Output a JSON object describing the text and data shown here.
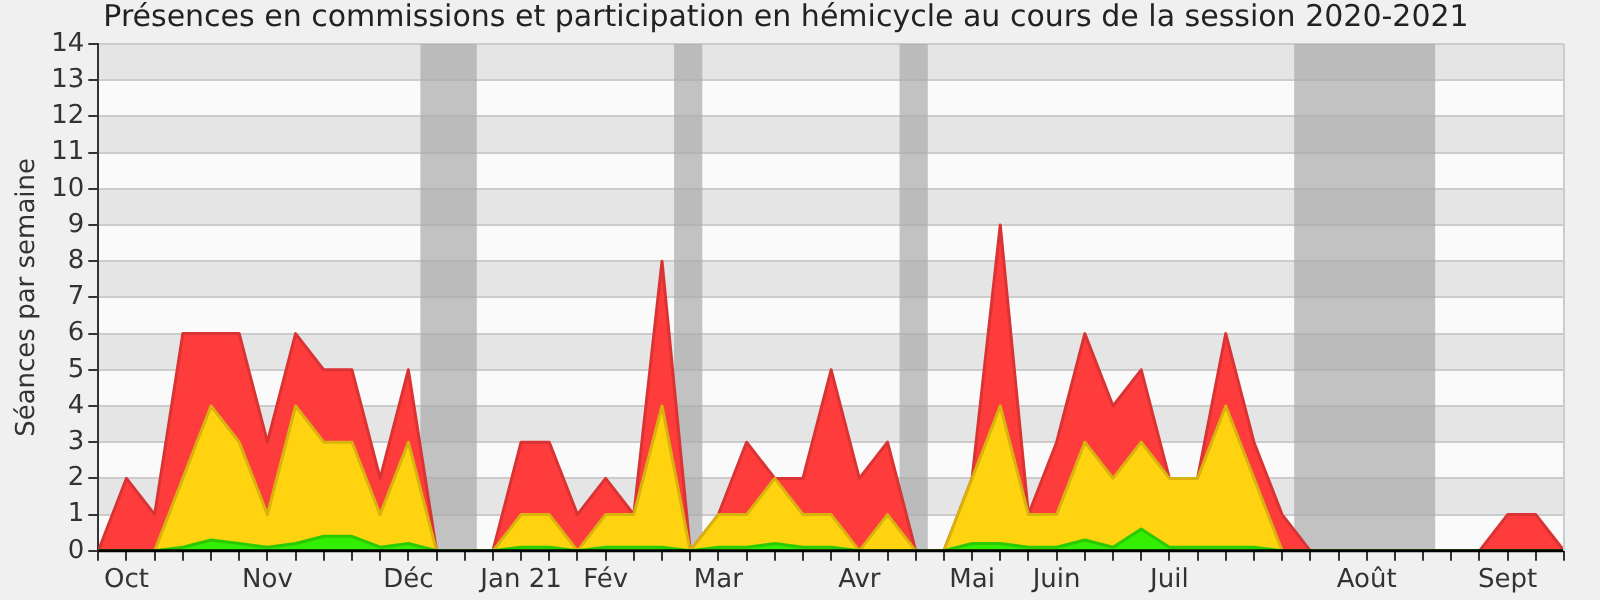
{
  "chart_data": {
    "type": "area",
    "title": "Présences en commissions et participation en hémicycle au cours de la session 2020-2021",
    "ylabel": "Séances par semaine",
    "stacked": true,
    "marker": "none",
    "grid": "y",
    "legend": false,
    "x": [
      "2020-09-28",
      "2020-10-05",
      "2020-10-12",
      "2020-10-19",
      "2020-10-26",
      "2020-11-02",
      "2020-11-09",
      "2020-11-16",
      "2020-11-23",
      "2020-11-30",
      "2020-12-07",
      "2020-12-14",
      "2020-12-21",
      "2020-12-28",
      "2021-01-04",
      "2021-01-11",
      "2021-01-18",
      "2021-01-25",
      "2021-02-01",
      "2021-02-08",
      "2021-02-15",
      "2021-02-22",
      "2021-03-01",
      "2021-03-08",
      "2021-03-15",
      "2021-03-22",
      "2021-03-29",
      "2021-04-05",
      "2021-04-12",
      "2021-04-19",
      "2021-04-26",
      "2021-05-03",
      "2021-05-10",
      "2021-05-17",
      "2021-05-24",
      "2021-05-31",
      "2021-06-07",
      "2021-06-14",
      "2021-06-21",
      "2021-06-28",
      "2021-07-05",
      "2021-07-12",
      "2021-07-19",
      "2021-07-26",
      "2021-08-02",
      "2021-08-09",
      "2021-08-16",
      "2021-08-23",
      "2021-08-30",
      "2021-09-06",
      "2021-09-13",
      "2021-09-20",
      "2021-09-27"
    ],
    "series": [
      {
        "color": "#33ee00",
        "values": [
          0,
          0,
          0,
          0.1,
          0.3,
          0.2,
          0.1,
          0.2,
          0.4,
          0.4,
          0.1,
          0.2,
          0,
          0,
          0,
          0.1,
          0.1,
          0,
          0.1,
          0.1,
          0.1,
          0,
          0.1,
          0.1,
          0.2,
          0.1,
          0.1,
          0,
          0,
          0,
          0,
          0.2,
          0.2,
          0.1,
          0.1,
          0.3,
          0.1,
          0.6,
          0.1,
          0.1,
          0.1,
          0.1,
          0,
          0,
          0,
          0,
          0,
          0,
          0,
          0,
          0,
          0,
          0
        ]
      },
      {
        "color": "#ffd30f",
        "values": [
          0,
          0,
          0,
          1.9,
          3.7,
          2.8,
          0.9,
          3.8,
          2.6,
          2.6,
          0.9,
          2.8,
          0,
          0,
          0,
          0.9,
          0.9,
          0,
          0.9,
          0.9,
          3.9,
          0,
          0.9,
          0.9,
          1.8,
          0.9,
          0.9,
          0,
          1,
          0,
          0,
          1.8,
          3.8,
          0.9,
          0.9,
          2.7,
          1.9,
          2.4,
          1.9,
          1.9,
          3.9,
          1.9,
          0,
          0,
          0,
          0,
          0,
          0,
          0,
          0,
          0,
          0,
          0
        ]
      },
      {
        "color": "#ff3c3c",
        "values": [
          0,
          2,
          1,
          4,
          2,
          3,
          2,
          2,
          2,
          2,
          1,
          2,
          0,
          0,
          0,
          2,
          2,
          1,
          1,
          0,
          4,
          0,
          0,
          2,
          0,
          1,
          4,
          2,
          2,
          0,
          0,
          0,
          5,
          0,
          2,
          3,
          2,
          2,
          0,
          0,
          2,
          1,
          1,
          0,
          0,
          0,
          0,
          0,
          0,
          0,
          1,
          1,
          0
        ]
      }
    ],
    "bands": [
      {
        "axis": "x",
        "from": "2020-12-17",
        "to": "2020-12-31",
        "color": "#aaaaaa"
      },
      {
        "axis": "x",
        "from": "2021-02-18",
        "to": "2021-02-25",
        "color": "#aaaaaa"
      },
      {
        "axis": "x",
        "from": "2021-04-15",
        "to": "2021-04-22",
        "color": "#aaaaaa"
      },
      {
        "axis": "x",
        "from": "2021-07-22",
        "to": "2021-08-26",
        "color": "#aaaaaa"
      }
    ],
    "xlim": [
      "2020-09-28",
      "2021-09-27"
    ],
    "xticks": [
      {
        "value": "2020-09-28",
        "label": null
      },
      {
        "value": "2020-10-05",
        "label": "Oct"
      },
      {
        "value": "2020-10-12",
        "label": null
      },
      {
        "value": "2020-10-19",
        "label": null
      },
      {
        "value": "2020-10-26",
        "label": null
      },
      {
        "value": "2020-11-02",
        "label": null
      },
      {
        "value": "2020-11-09",
        "label": "Nov"
      },
      {
        "value": "2020-11-16",
        "label": null
      },
      {
        "value": "2020-11-23",
        "label": null
      },
      {
        "value": "2020-11-30",
        "label": null
      },
      {
        "value": "2020-12-07",
        "label": null
      },
      {
        "value": "2020-12-14",
        "label": "Déc"
      },
      {
        "value": "2020-12-21",
        "label": null
      },
      {
        "value": "2020-12-28",
        "label": null
      },
      {
        "value": "2021-01-04",
        "label": null
      },
      {
        "value": "2021-01-11",
        "label": "Jan 21"
      },
      {
        "value": "2021-01-18",
        "label": null
      },
      {
        "value": "2021-01-25",
        "label": null
      },
      {
        "value": "2021-02-01",
        "label": "Fév"
      },
      {
        "value": "2021-02-08",
        "label": null
      },
      {
        "value": "2021-02-15",
        "label": null
      },
      {
        "value": "2021-02-22",
        "label": null
      },
      {
        "value": "2021-03-01",
        "label": "Mar"
      },
      {
        "value": "2021-03-08",
        "label": null
      },
      {
        "value": "2021-03-15",
        "label": null
      },
      {
        "value": "2021-03-22",
        "label": null
      },
      {
        "value": "2021-03-29",
        "label": null
      },
      {
        "value": "2021-04-05",
        "label": "Avr"
      },
      {
        "value": "2021-04-12",
        "label": null
      },
      {
        "value": "2021-04-19",
        "label": null
      },
      {
        "value": "2021-04-26",
        "label": null
      },
      {
        "value": "2021-05-03",
        "label": "Mai"
      },
      {
        "value": "2021-05-10",
        "label": null
      },
      {
        "value": "2021-05-17",
        "label": null
      },
      {
        "value": "2021-05-24",
        "label": "Juin"
      },
      {
        "value": "2021-05-31",
        "label": null
      },
      {
        "value": "2021-06-07",
        "label": null
      },
      {
        "value": "2021-06-14",
        "label": null
      },
      {
        "value": "2021-06-21",
        "label": "Juil"
      },
      {
        "value": "2021-06-28",
        "label": null
      },
      {
        "value": "2021-07-05",
        "label": null
      },
      {
        "value": "2021-07-12",
        "label": null
      },
      {
        "value": "2021-07-19",
        "label": null
      },
      {
        "value": "2021-07-26",
        "label": null
      },
      {
        "value": "2021-08-02",
        "label": null
      },
      {
        "value": "2021-08-09",
        "label": "Août"
      },
      {
        "value": "2021-08-16",
        "label": null
      },
      {
        "value": "2021-08-23",
        "label": null
      },
      {
        "value": "2021-08-30",
        "label": null
      },
      {
        "value": "2021-09-06",
        "label": null
      },
      {
        "value": "2021-09-13",
        "label": "Sept"
      },
      {
        "value": "2021-09-20",
        "label": null
      },
      {
        "value": "2021-09-27",
        "label": null
      }
    ],
    "ylim": [
      0,
      14
    ],
    "yticks": [
      0,
      1,
      2,
      3,
      4,
      5,
      6,
      7,
      8,
      9,
      10,
      11,
      12,
      13,
      14
    ]
  }
}
